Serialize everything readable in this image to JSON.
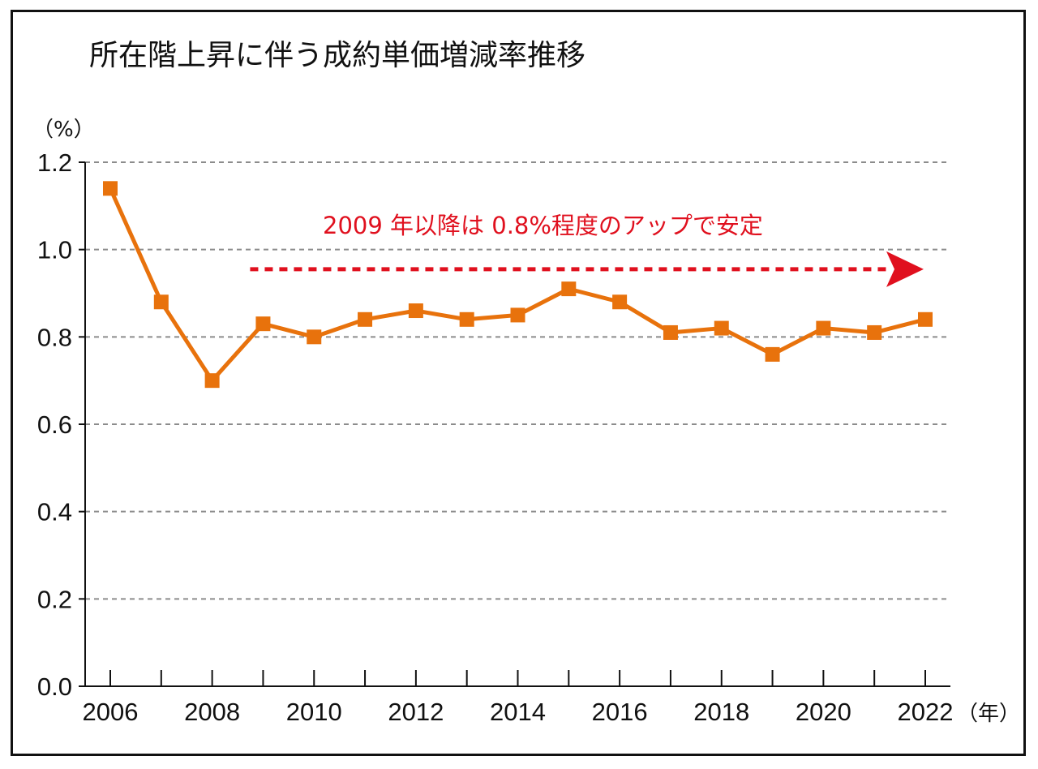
{
  "chart_data": {
    "type": "line",
    "title": "所在階上昇に伴う成約単価増減率推移",
    "ylabel": "（%）",
    "xlabel": "（年）",
    "ylim": [
      0,
      1.2
    ],
    "xlim": [
      2006,
      2022
    ],
    "yticks": [
      "0.0",
      "0.2",
      "0.4",
      "0.6",
      "0.8",
      "1.0",
      "1.2"
    ],
    "ytick_values": [
      0.0,
      0.2,
      0.4,
      0.6,
      0.8,
      1.0,
      1.2
    ],
    "xtick_labels": [
      "2006",
      "2008",
      "2010",
      "2012",
      "2014",
      "2016",
      "2018",
      "2020",
      "2022"
    ],
    "xtick_values": [
      2006,
      2008,
      2010,
      2012,
      2014,
      2016,
      2018,
      2020,
      2022
    ],
    "grid": true,
    "series": [
      {
        "name": "成約単価増減率",
        "color": "#E8720C",
        "marker": "square",
        "x": [
          2006,
          2007,
          2008,
          2009,
          2010,
          2011,
          2012,
          2013,
          2014,
          2015,
          2016,
          2017,
          2018,
          2019,
          2020,
          2021,
          2022
        ],
        "values": [
          1.14,
          0.88,
          0.7,
          0.83,
          0.8,
          0.84,
          0.86,
          0.84,
          0.85,
          0.91,
          0.88,
          0.81,
          0.82,
          0.76,
          0.82,
          0.81,
          0.84
        ]
      }
    ],
    "annotation": {
      "text": "2009 年以降は 0.8%程度のアップで安定",
      "color": "#E0101E",
      "arrow_from_x": 2009,
      "arrow_to_x": 2022,
      "arrow_y": 0.955
    }
  },
  "colors": {
    "line": "#E8720C",
    "annotation": "#E0101E",
    "grid": "#8C8C8C",
    "axis": "#111111"
  }
}
